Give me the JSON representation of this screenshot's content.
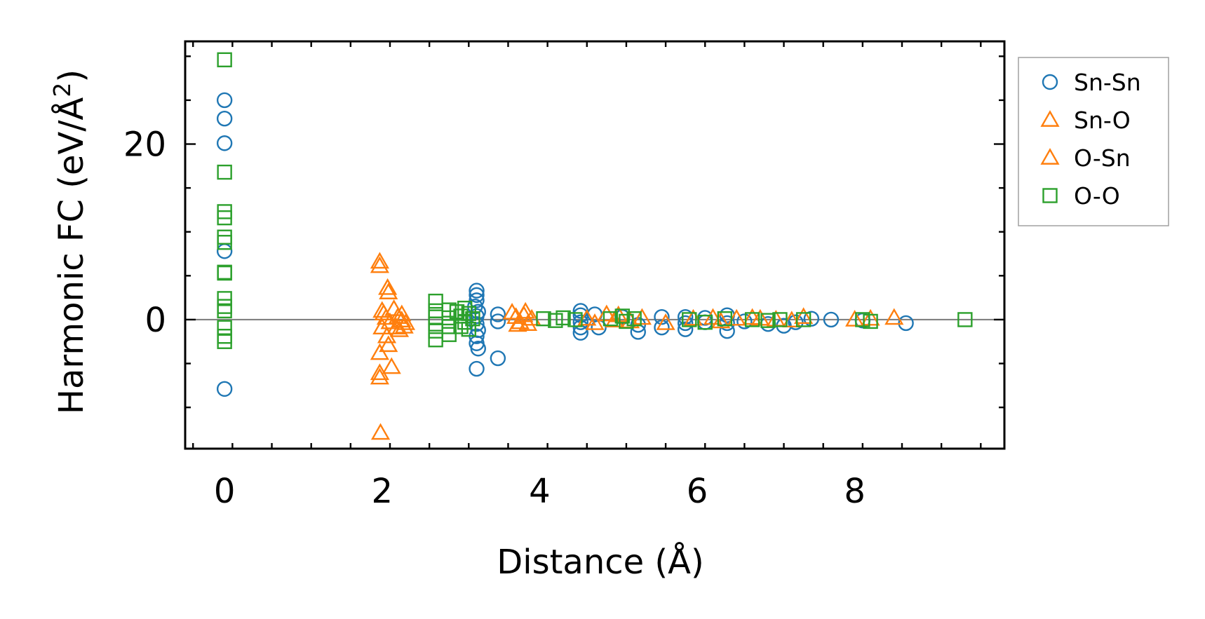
{
  "chart_data": {
    "type": "scatter",
    "xlabel": "Distance (Å)",
    "ylabel": "Harmonic FC (eV/Å²)",
    "ylabel_main": "Harmonic FC (eV/Å",
    "ylabel_sup": "2",
    "ylabel_close": ")",
    "xlim": [
      -0.5,
      9.9
    ],
    "ylim": [
      -14.7,
      31.7
    ],
    "x_ticks": [
      0,
      2,
      4,
      6,
      8
    ],
    "x_tick_labels": [
      "0",
      "2",
      "4",
      "6",
      "8"
    ],
    "y_ticks": [
      0,
      20
    ],
    "y_tick_labels": [
      "0",
      "20"
    ],
    "legend_position": "outside-right",
    "zero_line": true,
    "series": [
      {
        "name": "Sn-Sn",
        "marker": "circle",
        "color": "#1f77b4",
        "points": [
          [
            0,
            25
          ],
          [
            0,
            22.9
          ],
          [
            0,
            20.1
          ],
          [
            0,
            7.8
          ],
          [
            0,
            -7.9
          ],
          [
            3.2,
            3.3
          ],
          [
            3.2,
            2.8
          ],
          [
            3.2,
            2.2
          ],
          [
            3.18,
            1.5
          ],
          [
            3.22,
            0.9
          ],
          [
            3.2,
            0.4
          ],
          [
            3.2,
            -0.5
          ],
          [
            3.22,
            -1.2
          ],
          [
            3.2,
            -1.9
          ],
          [
            3.2,
            -2.7
          ],
          [
            3.22,
            -3.3
          ],
          [
            3.2,
            -5.6
          ],
          [
            3.47,
            0.6
          ],
          [
            3.47,
            -0.2
          ],
          [
            3.47,
            -4.4
          ],
          [
            4.52,
            1.0
          ],
          [
            4.52,
            0.5
          ],
          [
            4.52,
            -0.3
          ],
          [
            4.52,
            -0.9
          ],
          [
            4.52,
            -1.5
          ],
          [
            4.7,
            0.6
          ],
          [
            4.75,
            -0.9
          ],
          [
            5.05,
            0.3
          ],
          [
            5.25,
            -0.6
          ],
          [
            5.25,
            -1.4
          ],
          [
            5.55,
            0.3
          ],
          [
            5.55,
            -0.9
          ],
          [
            5.85,
            0.3
          ],
          [
            5.85,
            -0.4
          ],
          [
            5.85,
            -1.1
          ],
          [
            6.1,
            0.2
          ],
          [
            6.1,
            -0.3
          ],
          [
            6.38,
            0.5
          ],
          [
            6.38,
            -0.4
          ],
          [
            6.38,
            -1.3
          ],
          [
            6.6,
            -0.2
          ],
          [
            6.9,
            -0.5
          ],
          [
            7.1,
            -0.7
          ],
          [
            7.25,
            -0.3
          ],
          [
            7.45,
            0.1
          ],
          [
            7.7,
            0.0
          ],
          [
            8.1,
            -0.1
          ],
          [
            8.65,
            -0.4
          ]
        ]
      },
      {
        "name": "Sn-O",
        "marker": "triangle",
        "color": "#ff7f0e",
        "points": [
          [
            1.97,
            6.6
          ],
          [
            1.97,
            6.1
          ],
          [
            2.07,
            3.6
          ],
          [
            2.08,
            3.1
          ],
          [
            2.0,
            1.0
          ],
          [
            2.05,
            0.2
          ],
          [
            2.0,
            -0.9
          ],
          [
            2.06,
            -1.9
          ],
          [
            1.97,
            -3.8
          ],
          [
            2.08,
            -2.9
          ],
          [
            1.97,
            -6.1
          ],
          [
            1.97,
            -6.6
          ],
          [
            2.12,
            -5.4
          ],
          [
            1.98,
            -12.9
          ],
          [
            2.15,
            1.2
          ],
          [
            2.2,
            0.3
          ],
          [
            2.25,
            0.6
          ],
          [
            2.3,
            -0.4
          ],
          [
            2.22,
            -1.2
          ],
          [
            2.28,
            -0.8
          ],
          [
            3.65,
            0.8
          ],
          [
            3.7,
            0.3
          ],
          [
            3.75,
            -0.3
          ],
          [
            3.8,
            0.5
          ],
          [
            3.85,
            -0.5
          ],
          [
            3.9,
            0.1
          ],
          [
            4.7,
            -0.4
          ],
          [
            4.85,
            0.6
          ],
          [
            5.0,
            0.5
          ],
          [
            5.15,
            -0.2
          ],
          [
            5.6,
            -0.4
          ],
          [
            5.95,
            0.1
          ],
          [
            6.2,
            0.2
          ],
          [
            6.5,
            0.1
          ],
          [
            6.8,
            0.1
          ],
          [
            7.0,
            0.0
          ],
          [
            7.35,
            0.3
          ],
          [
            8.0,
            0.0
          ],
          [
            8.5,
            0.2
          ]
        ]
      },
      {
        "name": "O-Sn",
        "marker": "triangle",
        "color": "#ff7f0e",
        "points": [
          [
            2.02,
            0.7
          ],
          [
            2.1,
            -0.3
          ],
          [
            2.18,
            -0.9
          ],
          [
            2.25,
            -0.1
          ],
          [
            3.72,
            -0.6
          ],
          [
            3.82,
            0.9
          ],
          [
            4.6,
            0.1
          ],
          [
            4.95,
            -0.1
          ],
          [
            5.3,
            0.2
          ],
          [
            6.3,
            -0.2
          ],
          [
            6.7,
            0.2
          ],
          [
            7.2,
            -0.1
          ],
          [
            8.2,
            0.1
          ]
        ]
      },
      {
        "name": "O-O",
        "marker": "square",
        "color": "#2ca02c",
        "points": [
          [
            0,
            29.6
          ],
          [
            0,
            16.8
          ],
          [
            0,
            12.3
          ],
          [
            0,
            11.6
          ],
          [
            0,
            9.4
          ],
          [
            0,
            8.8
          ],
          [
            0,
            5.4
          ],
          [
            0,
            5.3
          ],
          [
            0,
            2.4
          ],
          [
            0,
            1.5
          ],
          [
            0,
            1.0
          ],
          [
            0,
            -0.9
          ],
          [
            0,
            -1.9
          ],
          [
            0,
            -2.5
          ],
          [
            2.68,
            2.1
          ],
          [
            2.68,
            1.0
          ],
          [
            2.68,
            0.3
          ],
          [
            2.68,
            -0.5
          ],
          [
            2.68,
            -1.3
          ],
          [
            2.68,
            -2.3
          ],
          [
            2.85,
            1.1
          ],
          [
            2.85,
            0.2
          ],
          [
            2.85,
            -0.8
          ],
          [
            2.85,
            -1.7
          ],
          [
            2.95,
            0.9
          ],
          [
            3.0,
            0.4
          ],
          [
            3.05,
            1.3
          ],
          [
            3.05,
            -0.3
          ],
          [
            3.1,
            0.7
          ],
          [
            3.1,
            -1.1
          ],
          [
            3.15,
            0.1
          ],
          [
            3.0,
            -0.8
          ],
          [
            4.05,
            0.1
          ],
          [
            4.2,
            -0.1
          ],
          [
            4.3,
            0.2
          ],
          [
            4.45,
            0.0
          ],
          [
            4.9,
            0.1
          ],
          [
            5.05,
            0.4
          ],
          [
            5.1,
            -0.2
          ],
          [
            5.2,
            0.1
          ],
          [
            5.9,
            0.0
          ],
          [
            6.1,
            -0.3
          ],
          [
            6.35,
            0.1
          ],
          [
            6.7,
            0.0
          ],
          [
            6.9,
            -0.1
          ],
          [
            7.05,
            0.0
          ],
          [
            7.35,
            0.0
          ],
          [
            8.1,
            0.0
          ],
          [
            8.2,
            -0.2
          ],
          [
            9.4,
            0.0
          ]
        ]
      }
    ]
  }
}
